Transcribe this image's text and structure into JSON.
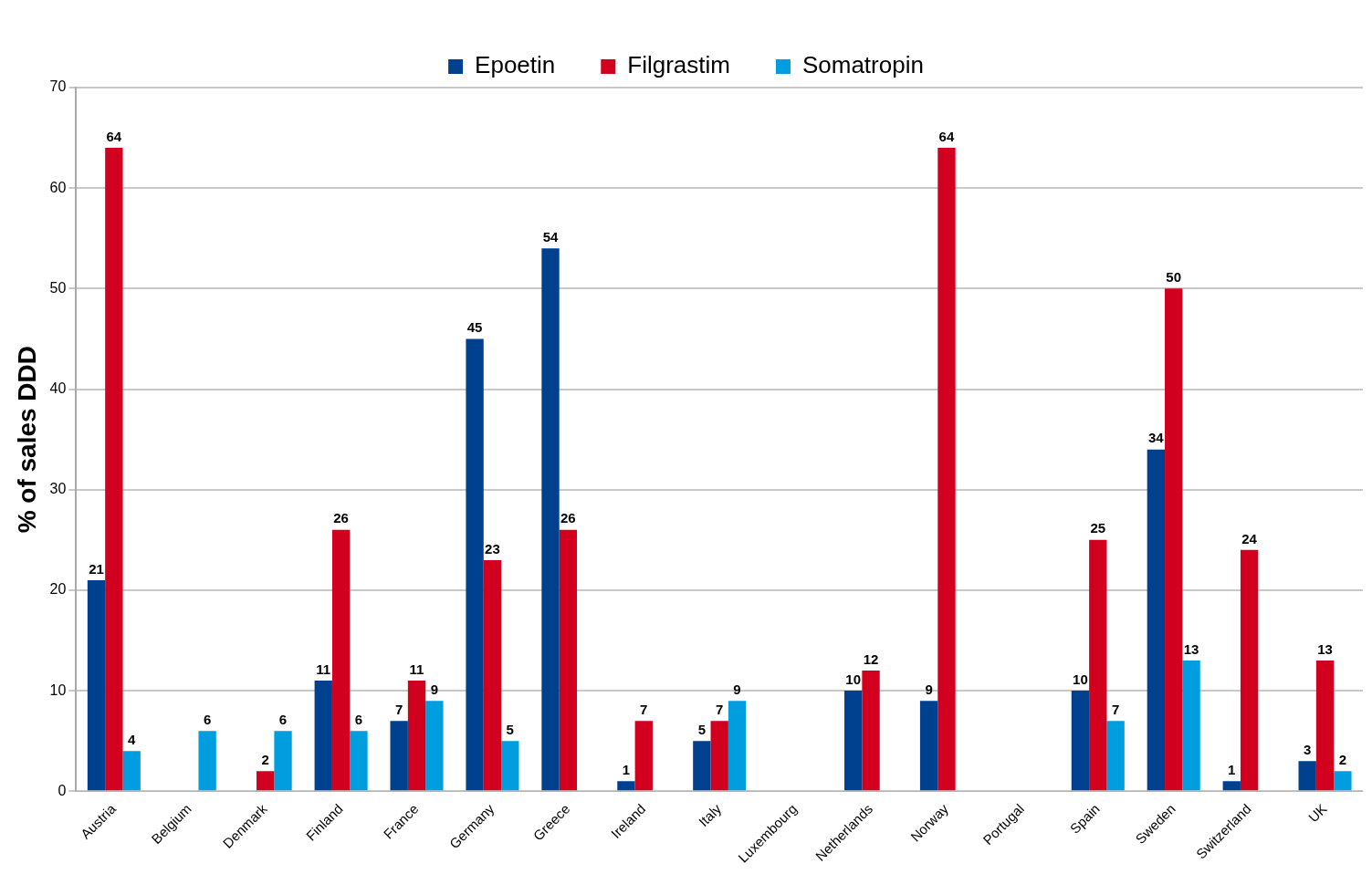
{
  "chart_data": {
    "type": "bar",
    "ylabel": "% of sales DDD",
    "categories": [
      "Austria",
      "Belgium",
      "Denmark",
      "Finland",
      "France",
      "Germany",
      "Greece",
      "Ireland",
      "Italy",
      "Luxembourg",
      "Netherlands",
      "Norway",
      "Portugal",
      "Spain",
      "Sweden",
      "Switzerland",
      "UK"
    ],
    "series": [
      {
        "name": "Epoetin",
        "color": "#00418f",
        "values": [
          21,
          null,
          null,
          11,
          7,
          45,
          54,
          1,
          5,
          null,
          10,
          9,
          null,
          10,
          34,
          1,
          3
        ]
      },
      {
        "name": "Filgrastim",
        "color": "#d2001e",
        "values": [
          64,
          null,
          2,
          26,
          11,
          23,
          26,
          7,
          7,
          null,
          12,
          64,
          null,
          25,
          50,
          24,
          13
        ]
      },
      {
        "name": "Somatropin",
        "color": "#009ede",
        "values": [
          4,
          6,
          6,
          6,
          9,
          5,
          null,
          null,
          9,
          null,
          null,
          null,
          null,
          7,
          13,
          null,
          2
        ]
      }
    ],
    "ylim": [
      0,
      70
    ],
    "yticks": [
      0,
      10,
      20,
      30,
      40,
      50,
      60,
      70
    ],
    "grid": "y",
    "legend": "top",
    "data_labels": true
  }
}
